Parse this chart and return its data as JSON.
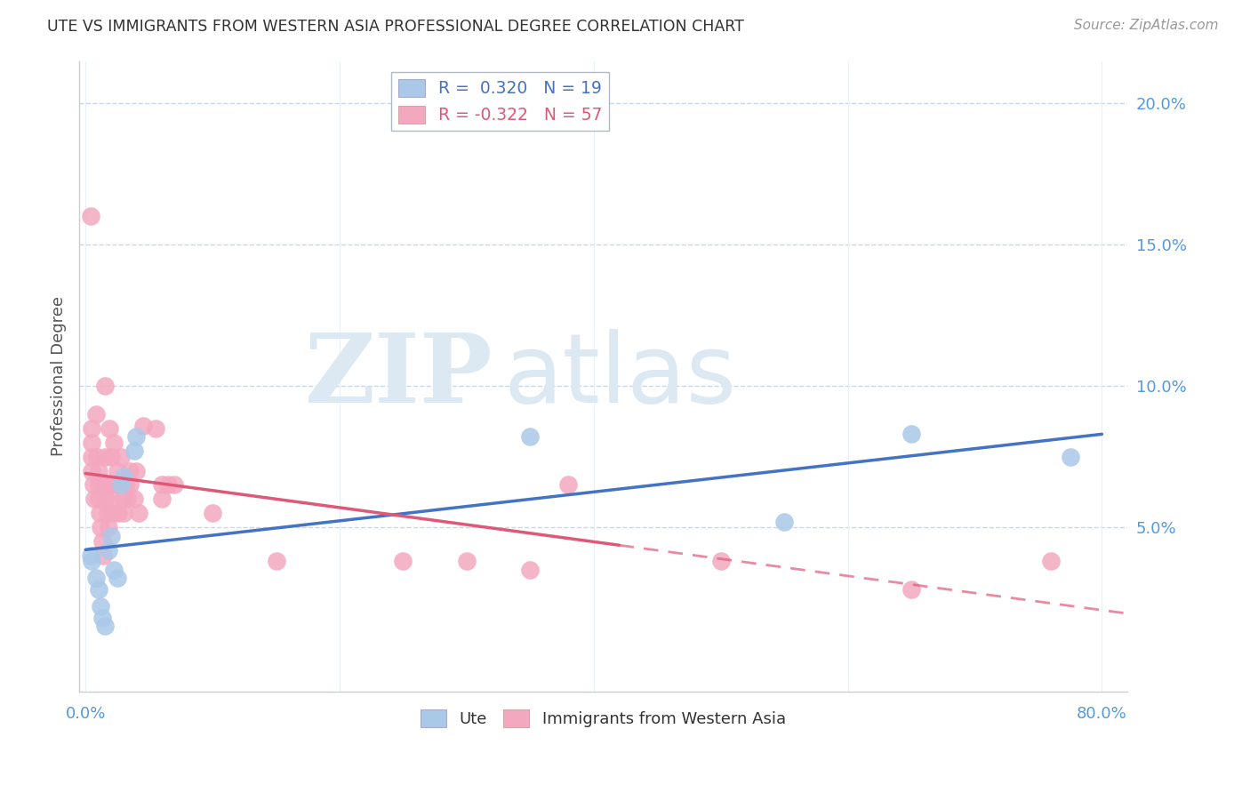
{
  "title": "UTE VS IMMIGRANTS FROM WESTERN ASIA PROFESSIONAL DEGREE CORRELATION CHART",
  "source": "Source: ZipAtlas.com",
  "ylabel": "Professional Degree",
  "xlim": [
    -0.005,
    0.82
  ],
  "ylim": [
    -0.008,
    0.215
  ],
  "ute_R": 0.32,
  "ute_N": 19,
  "imm_R": -0.322,
  "imm_N": 57,
  "ute_color": "#aac8e8",
  "imm_color": "#f4a8c0",
  "ute_line_color": "#4472c4",
  "imm_line_color": "#e05878",
  "grid_color": "#c8d8e8",
  "background_color": "#ffffff",
  "watermark_color": "#dce8f2",
  "ute_x": [
    0.004,
    0.005,
    0.008,
    0.01,
    0.012,
    0.013,
    0.015,
    0.018,
    0.02,
    0.022,
    0.025,
    0.028,
    0.03,
    0.038,
    0.04,
    0.35,
    0.55,
    0.65,
    0.775
  ],
  "ute_y": [
    0.04,
    0.038,
    0.032,
    0.028,
    0.022,
    0.018,
    0.015,
    0.042,
    0.047,
    0.035,
    0.032,
    0.065,
    0.068,
    0.077,
    0.082,
    0.082,
    0.052,
    0.083,
    0.075
  ],
  "imm_x": [
    0.004,
    0.005,
    0.005,
    0.005,
    0.005,
    0.006,
    0.007,
    0.008,
    0.009,
    0.01,
    0.01,
    0.01,
    0.011,
    0.012,
    0.013,
    0.014,
    0.015,
    0.015,
    0.015,
    0.016,
    0.017,
    0.018,
    0.019,
    0.02,
    0.02,
    0.02,
    0.021,
    0.022,
    0.025,
    0.025,
    0.026,
    0.028,
    0.03,
    0.03,
    0.03,
    0.032,
    0.033,
    0.035,
    0.035,
    0.038,
    0.04,
    0.042,
    0.045,
    0.055,
    0.06,
    0.06,
    0.065,
    0.07,
    0.1,
    0.15,
    0.25,
    0.3,
    0.35,
    0.38,
    0.5,
    0.65,
    0.76
  ],
  "imm_y": [
    0.16,
    0.085,
    0.08,
    0.075,
    0.07,
    0.065,
    0.06,
    0.09,
    0.075,
    0.07,
    0.065,
    0.06,
    0.055,
    0.05,
    0.045,
    0.04,
    0.1,
    0.075,
    0.065,
    0.06,
    0.055,
    0.05,
    0.085,
    0.075,
    0.065,
    0.06,
    0.055,
    0.08,
    0.07,
    0.065,
    0.055,
    0.075,
    0.065,
    0.06,
    0.055,
    0.065,
    0.06,
    0.07,
    0.065,
    0.06,
    0.07,
    0.055,
    0.086,
    0.085,
    0.065,
    0.06,
    0.065,
    0.065,
    0.055,
    0.038,
    0.038,
    0.038,
    0.035,
    0.065,
    0.038,
    0.028,
    0.038
  ]
}
